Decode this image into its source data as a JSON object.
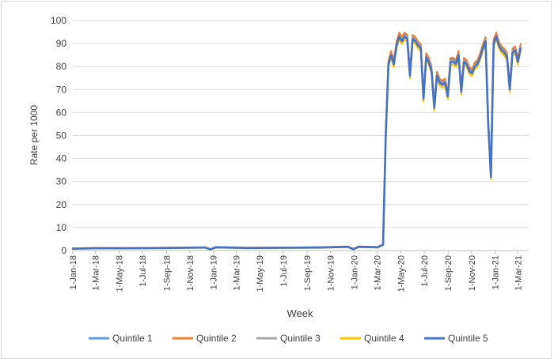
{
  "chart_data": {
    "type": "line",
    "xlabel": "Week",
    "ylabel": "Rate per 1000",
    "ylim": [
      0,
      100
    ],
    "yticks": [
      0,
      10,
      20,
      30,
      40,
      50,
      60,
      70,
      80,
      90,
      100
    ],
    "xticks": [
      "1-Jan-18",
      "1-Mar-18",
      "1-May-18",
      "1-Jul-18",
      "1-Sep-18",
      "1-Nov-18",
      "1-Jan-19",
      "1-Mar-19",
      "1-May-19",
      "1-Jul-19",
      "1-Sep-19",
      "1-Nov-19",
      "1-Jan-20",
      "1-Mar-20",
      "1-May-20",
      "1-Jul-20",
      "1-Sep-20",
      "1-Nov-20",
      "1-Jan-21",
      "1-Mar-21"
    ],
    "xlim": [
      "2018-01-01",
      "2021-03-29"
    ],
    "grid": "horizontal",
    "legend": "bottom",
    "base_points": [
      [
        "2018-01-01",
        0.8
      ],
      [
        "2018-03-01",
        1.0
      ],
      [
        "2018-06-01",
        1.0
      ],
      [
        "2018-09-01",
        1.1
      ],
      [
        "2018-12-10",
        1.3
      ],
      [
        "2018-12-24",
        0.5
      ],
      [
        "2019-01-07",
        1.4
      ],
      [
        "2019-04-01",
        1.1
      ],
      [
        "2019-07-01",
        1.2
      ],
      [
        "2019-10-01",
        1.3
      ],
      [
        "2019-12-16",
        1.6
      ],
      [
        "2019-12-30",
        0.6
      ],
      [
        "2020-01-13",
        1.6
      ],
      [
        "2020-03-02",
        1.4
      ],
      [
        "2020-03-16",
        2.5
      ],
      [
        "2020-03-23",
        50
      ],
      [
        "2020-03-30",
        81
      ],
      [
        "2020-04-06",
        85
      ],
      [
        "2020-04-13",
        81
      ],
      [
        "2020-04-20",
        89
      ],
      [
        "2020-04-27",
        93
      ],
      [
        "2020-05-04",
        91
      ],
      [
        "2020-05-11",
        93
      ],
      [
        "2020-05-18",
        92
      ],
      [
        "2020-05-25",
        76
      ],
      [
        "2020-06-01",
        92
      ],
      [
        "2020-06-08",
        91
      ],
      [
        "2020-06-15",
        89
      ],
      [
        "2020-06-22",
        88
      ],
      [
        "2020-06-29",
        66
      ],
      [
        "2020-07-06",
        84
      ],
      [
        "2020-07-13",
        82
      ],
      [
        "2020-07-20",
        78
      ],
      [
        "2020-07-27",
        62
      ],
      [
        "2020-08-03",
        76
      ],
      [
        "2020-08-10",
        73
      ],
      [
        "2020-08-17",
        72
      ],
      [
        "2020-08-24",
        73
      ],
      [
        "2020-08-31",
        67
      ],
      [
        "2020-09-07",
        82
      ],
      [
        "2020-09-14",
        82
      ],
      [
        "2020-09-21",
        81
      ],
      [
        "2020-09-28",
        85
      ],
      [
        "2020-10-05",
        69
      ],
      [
        "2020-10-12",
        82
      ],
      [
        "2020-10-19",
        81
      ],
      [
        "2020-10-26",
        78
      ],
      [
        "2020-11-02",
        77
      ],
      [
        "2020-11-09",
        80
      ],
      [
        "2020-11-16",
        81
      ],
      [
        "2020-11-23",
        84
      ],
      [
        "2020-11-30",
        88
      ],
      [
        "2020-12-07",
        91
      ],
      [
        "2020-12-14",
        55
      ],
      [
        "2020-12-21",
        32
      ],
      [
        "2020-12-28",
        90
      ],
      [
        "2021-01-04",
        93
      ],
      [
        "2021-01-11",
        89
      ],
      [
        "2021-01-18",
        87
      ],
      [
        "2021-01-25",
        86
      ],
      [
        "2021-02-01",
        84
      ],
      [
        "2021-02-08",
        70
      ],
      [
        "2021-02-15",
        86
      ],
      [
        "2021-02-22",
        87
      ],
      [
        "2021-03-01",
        82
      ],
      [
        "2021-03-08",
        88
      ]
    ],
    "series": [
      {
        "name": "Quintile 1",
        "color": "#5b9bd5",
        "offset": 1.2
      },
      {
        "name": "Quintile 2",
        "color": "#ed7d31",
        "offset": 1.8
      },
      {
        "name": "Quintile 3",
        "color": "#a5a5a5",
        "offset": 0.6
      },
      {
        "name": "Quintile 4",
        "color": "#ffc000",
        "offset": -1.2
      },
      {
        "name": "Quintile 5",
        "color": "#4472c4",
        "offset": 0.0
      }
    ]
  }
}
